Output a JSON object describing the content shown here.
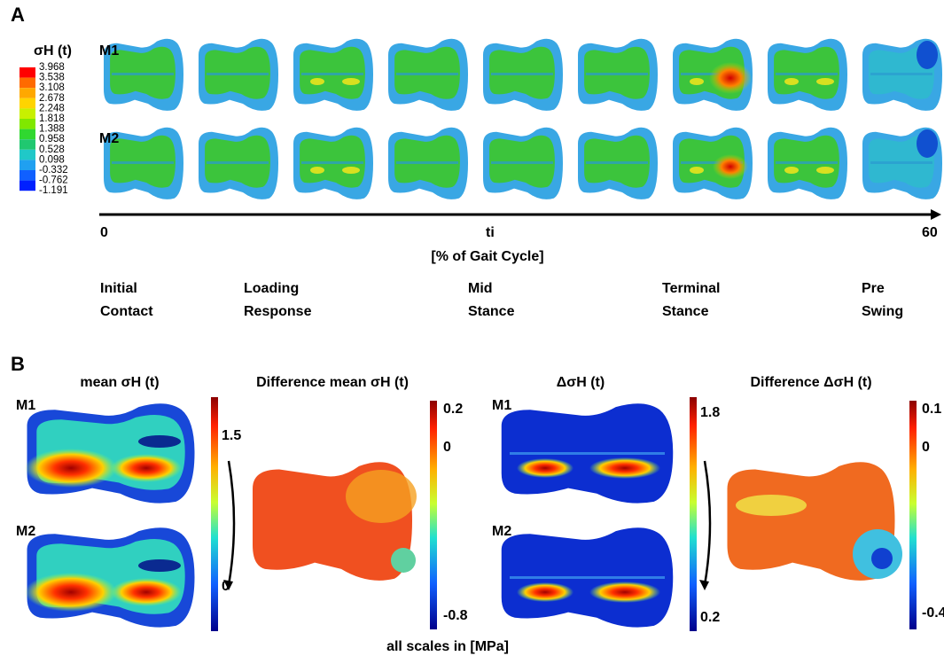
{
  "panel_a": {
    "label": "A",
    "legend_title": "σH (t)",
    "legend_values": [
      "3.968",
      "3.538",
      "3.108",
      "2.678",
      "2.248",
      "1.818",
      "1.388",
      "0.958",
      "0.528",
      "0.098",
      "-0.332",
      "-0.762",
      "-1.191"
    ],
    "rows": [
      "M1",
      "M2"
    ],
    "axis": {
      "start": "0",
      "middle": "ti",
      "end": "60",
      "label": "[% of Gait Cycle]"
    },
    "phases": [
      [
        "Initial",
        "Contact"
      ],
      [
        "Loading",
        "Response"
      ],
      [
        "Mid",
        "Stance"
      ],
      [
        "Terminal",
        "Stance"
      ],
      [
        "Pre",
        "Swing"
      ]
    ]
  },
  "panel_b": {
    "label": "B",
    "titles": [
      "mean σH (t)",
      "Difference mean σH (t)",
      "ΔσH (t)",
      "Difference ΔσH (t)"
    ],
    "rows": [
      "M1",
      "M2"
    ],
    "scales": [
      [
        "1.5",
        "0"
      ],
      [
        "0.2",
        "0",
        "-0.8"
      ],
      [
        "1.8",
        "0.2"
      ],
      [
        "0.1",
        "0",
        "-0.4"
      ]
    ],
    "footer": "all scales in [MPa]"
  }
}
